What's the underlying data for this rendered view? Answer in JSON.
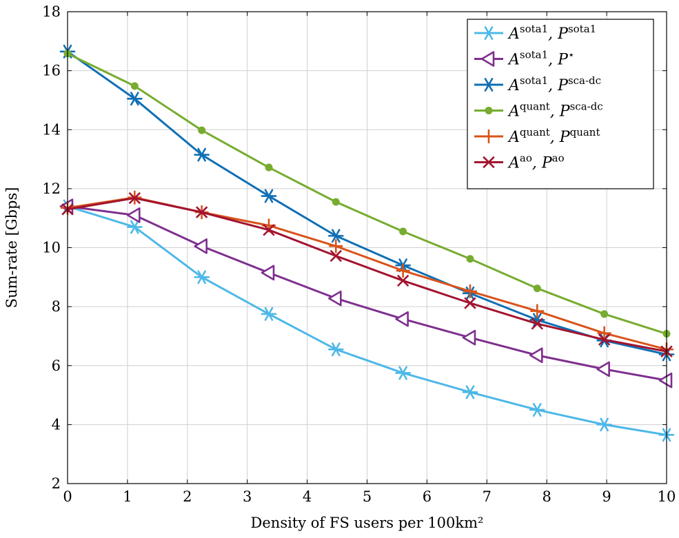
{
  "chart_data": {
    "type": "line",
    "title": "",
    "xlabel": "Density of FS users per 100km²",
    "ylabel": "Sum-rate [Gbps]",
    "xlim": [
      0,
      10
    ],
    "ylim": [
      2,
      18
    ],
    "xticks": [
      0,
      1,
      2,
      3,
      4,
      5,
      6,
      7,
      8,
      9,
      10
    ],
    "yticks": [
      2,
      4,
      6,
      8,
      10,
      12,
      14,
      16,
      18
    ],
    "grid": true,
    "legend_position": "top-right",
    "x": [
      0,
      1.12,
      2.24,
      3.36,
      4.48,
      5.6,
      6.72,
      7.84,
      8.96,
      10
    ],
    "series": [
      {
        "key": "s1",
        "name": "A^sota1, P^sota1",
        "legend": {
          "a_sup": "sota1",
          "p_sup": "sota1"
        },
        "color": "#4db8e8",
        "marker": "asterisk",
        "values": [
          11.4,
          10.7,
          9.0,
          7.75,
          6.55,
          5.75,
          5.1,
          4.5,
          4.0,
          3.65
        ]
      },
      {
        "key": "s2",
        "name": "A^sota1, P^⋆",
        "legend": {
          "a_sup": "sota1",
          "p_sup": "⋆"
        },
        "color": "#7e2f8e",
        "marker": "triangle-left",
        "values": [
          11.4,
          11.1,
          10.05,
          9.15,
          8.28,
          7.58,
          6.95,
          6.35,
          5.88,
          5.5
        ]
      },
      {
        "key": "s3",
        "name": "A^sota1, P^sca-dc",
        "legend": {
          "a_sup": "sota1",
          "p_sup": "sca-dc"
        },
        "color": "#0f6fb5",
        "marker": "asterisk",
        "values": [
          16.65,
          15.05,
          13.15,
          11.75,
          10.4,
          9.4,
          8.45,
          7.55,
          6.85,
          6.38
        ]
      },
      {
        "key": "s4",
        "name": "A^quant, P^sca-dc",
        "legend": {
          "a_sup": "quant",
          "p_sup": "sca-dc"
        },
        "color": "#77ac30",
        "marker": "circle",
        "values": [
          16.58,
          15.48,
          13.98,
          12.72,
          11.55,
          10.55,
          9.62,
          8.62,
          7.75,
          7.08
        ]
      },
      {
        "key": "s5",
        "name": "A^quant, P^quant",
        "legend": {
          "a_sup": "quant",
          "p_sup": "quant"
        },
        "color": "#d95319",
        "marker": "plus",
        "values": [
          11.35,
          11.7,
          11.2,
          10.75,
          10.05,
          9.22,
          8.52,
          7.85,
          7.1,
          6.55
        ]
      },
      {
        "key": "s6",
        "name": "A^ao, P^ao",
        "legend": {
          "a_sup": "ao",
          "p_sup": "ao"
        },
        "color": "#a2142f",
        "marker": "cross",
        "values": [
          11.3,
          11.68,
          11.2,
          10.6,
          9.72,
          8.88,
          8.12,
          7.42,
          6.88,
          6.48
        ]
      }
    ]
  }
}
